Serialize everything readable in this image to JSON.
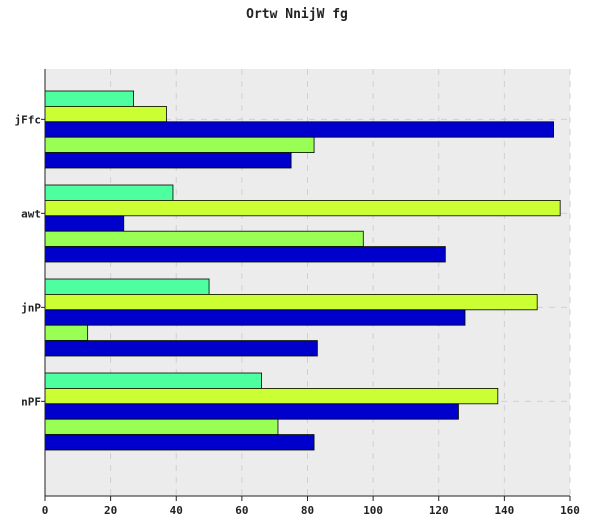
{
  "chart_data": {
    "type": "bar",
    "orientation": "horizontal",
    "title": "Ortw NnijW fg",
    "xlabel": "",
    "ylabel": "",
    "xlim": [
      0,
      160
    ],
    "x_ticks": [
      "0",
      "20",
      "40",
      "60",
      "80",
      "100",
      "120",
      "140",
      "160"
    ],
    "categories": [
      "jFfc",
      "awt",
      "jnP",
      "nPF"
    ],
    "series": [
      {
        "color": "#4dff9e",
        "values": [
          27,
          39,
          50,
          66
        ]
      },
      {
        "color": "#ccff33",
        "values": [
          37,
          157,
          150,
          138
        ]
      },
      {
        "color": "#0000cc",
        "values": [
          155,
          24,
          128,
          126
        ]
      },
      {
        "color": "#99ff55",
        "values": [
          82,
          97,
          13,
          71
        ]
      },
      {
        "color": "#0000cc",
        "values": [
          75,
          122,
          83,
          82
        ]
      }
    ],
    "grid": true,
    "legend": "none",
    "background_color": "#ececec"
  }
}
